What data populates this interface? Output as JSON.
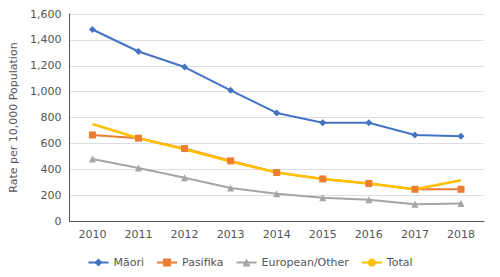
{
  "chart_data": {
    "type": "line",
    "categories": [
      "2010",
      "2011",
      "2012",
      "2013",
      "2014",
      "2015",
      "2016",
      "2017",
      "2018"
    ],
    "series": [
      {
        "name": "Māori",
        "color": "#4472C4",
        "marker": "diamond",
        "values": [
          1480,
          1310,
          1190,
          1010,
          835,
          760,
          760,
          665,
          655
        ]
      },
      {
        "name": "Pasifika",
        "color": "#ED7D31",
        "marker": "square",
        "values": [
          665,
          640,
          560,
          465,
          375,
          325,
          290,
          245,
          245
        ]
      },
      {
        "name": "European/Other",
        "color": "#A5A5A5",
        "marker": "triangle",
        "values": [
          480,
          410,
          335,
          255,
          210,
          180,
          165,
          130,
          135
        ]
      },
      {
        "name": "Total",
        "color": "#FFC000",
        "marker": "none",
        "values": [
          750,
          640,
          555,
          460,
          375,
          325,
          290,
          245,
          315
        ]
      }
    ],
    "ylabel": "Rate per 10,000 Population",
    "ylim": [
      0,
      1600
    ],
    "yticks": [
      0,
      200,
      400,
      600,
      800,
      {
        "value": 1000,
        "label": "1,000"
      },
      {
        "value": 1200,
        "label": "1,200"
      },
      {
        "value": 1400,
        "label": "1,400"
      },
      {
        "value": 1600,
        "label": "1,600"
      }
    ],
    "grid": true,
    "legend": "bottom"
  }
}
